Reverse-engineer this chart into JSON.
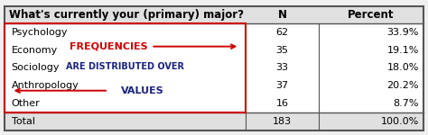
{
  "header": [
    "What's currently your (primary) major?",
    "N",
    "Percent"
  ],
  "rows": [
    [
      "Psychology",
      "62",
      "33.9%"
    ],
    [
      "Economy",
      "35",
      "19.1%"
    ],
    [
      "Sociology",
      "33",
      "18.0%"
    ],
    [
      "Anthropology",
      "37",
      "20.2%"
    ],
    [
      "Other",
      "16",
      "8.7%"
    ],
    [
      "Total",
      "183",
      "100.0%"
    ]
  ],
  "annotation_line1": "FREQUENCIES",
  "annotation_line2": "ARE DISTRIBUTED OVER",
  "annotation_line3": "VALUES",
  "annotation_color": "#cc0000",
  "annotation_label_color": "#1a237e",
  "arrow_color": "#cc0000",
  "header_bg": "#e0e0e0",
  "total_bg": "#e0e0e0",
  "table_border_color": "#cc0000",
  "outer_border_color": "#555555",
  "fig_bg": "#f0f0f0",
  "font_size": 8.0,
  "header_font_size": 8.5
}
